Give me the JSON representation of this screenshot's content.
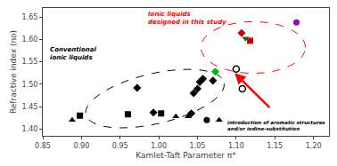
{
  "chart_data": {
    "type": "scatter",
    "title": "",
    "xlabel": "Kamlet-Taft Parameter π*",
    "ylabel": "Refractive index (nᴅ)",
    "xlim": [
      0.85,
      1.22
    ],
    "ylim": [
      1.385,
      1.67
    ],
    "xticks": [
      0.85,
      {
        "value": 0.9,
        "label": "0.90"
      },
      0.95,
      {
        "value": 1.0,
        "label": "1.00"
      },
      1.05,
      {
        "value": 1.1,
        "label": "1.10"
      },
      1.15,
      {
        "value": 1.2,
        "label": "1.20"
      }
    ],
    "yticks": [
      {
        "value": 1.4,
        "label": "1.40"
      },
      1.45,
      {
        "value": 1.5,
        "label": "1.50"
      },
      1.55,
      {
        "value": 1.6,
        "label": "1.60"
      },
      1.65
    ],
    "grid": false,
    "series": [
      {
        "x": [
          0.888,
          0.898,
          0.96,
          0.972,
          0.993,
          1.003,
          1.022,
          1.038,
          1.042,
          1.045,
          1.05,
          1.053,
          1.057,
          1.062,
          1.07,
          1.078
        ],
        "values": [
          1.42,
          1.43,
          1.433,
          1.492,
          1.437,
          1.435,
          1.428,
          1.428,
          1.435,
          1.48,
          1.49,
          1.505,
          1.512,
          1.42,
          1.508,
          1.42
        ],
        "markers": [
          "triangle-up",
          "square",
          "square",
          "diamond",
          "diamond",
          "square",
          "triangle-up",
          "triangle-up",
          "diamond",
          "diamond",
          "diamond",
          "diamond",
          "diamond",
          "circle",
          "diamond",
          "triangle-up"
        ],
        "colors": [
          "black",
          "black",
          "black",
          "black",
          "black",
          "black",
          "black",
          "black",
          "black",
          "black",
          "black",
          "black",
          "black",
          "black",
          "black",
          "black"
        ]
      },
      {
        "x": [
          1.073,
          1.1,
          1.107,
          1.108,
          1.112,
          1.118,
          1.178
        ],
        "values": [
          1.528,
          1.534,
          1.614,
          1.49,
          1.602,
          1.597,
          1.638
        ],
        "markers": [
          "diamond",
          "circle-open",
          "diamond",
          "circle-open",
          "triangle-down",
          "square",
          "circle"
        ],
        "colors": [
          "#00bb00",
          "black",
          "#cc0000",
          "black",
          "#007700",
          "#cc0000",
          "#9900bb"
        ]
      }
    ],
    "ellipses": [
      {
        "cx": 0.995,
        "cy": 1.468,
        "w": 0.195,
        "h": 0.105,
        "angle": 28,
        "color": "black",
        "line_style": "dash"
      },
      {
        "cx": 1.122,
        "cy": 1.582,
        "w": 0.135,
        "h": 0.115,
        "angle": 0,
        "color": "red",
        "line_style": "dash"
      }
    ],
    "annotations": [
      {
        "text": "Conventional\nionic liquids",
        "color": "black"
      },
      {
        "text": "Ionic liquids\ndesigned in this study",
        "color": "red"
      },
      {
        "text": "introduction of aromatic structures\nand/or iodine-substitution",
        "color": "black"
      }
    ],
    "arrows": [
      {
        "x": 1.098,
        "y": 1.525,
        "x_from": 1.145,
        "y_from": 1.445,
        "color": "red"
      }
    ]
  }
}
